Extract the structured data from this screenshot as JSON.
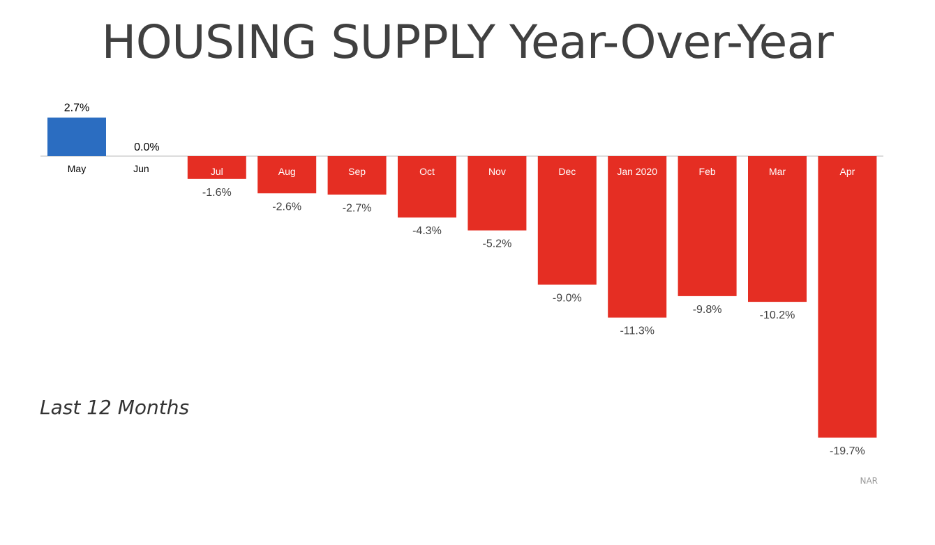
{
  "page": {
    "title": "HOUSING SUPPLY Year-Over-Year",
    "subtitle": "Last 12 Months",
    "source": "NAR"
  },
  "colors": {
    "positive": "#2b6dc1",
    "negative": "#e52e23",
    "axis": "#d0d0d0",
    "value_label": "#404040",
    "category_on_bar": "#ffffff",
    "category_off_bar": "#000000"
  },
  "chart_data": {
    "type": "bar",
    "title": "HOUSING SUPPLY Year-Over-Year",
    "subtitle": "Last 12 Months",
    "categories": [
      "May",
      "Jun",
      "Jul",
      "Aug",
      "Sep",
      "Oct",
      "Nov",
      "Dec",
      "Jan 2020",
      "Feb",
      "Mar",
      "Apr"
    ],
    "values": [
      2.7,
      0.0,
      -1.6,
      -2.6,
      -2.7,
      -4.3,
      -5.2,
      -9.0,
      -11.3,
      -9.8,
      -10.2,
      -19.7
    ],
    "value_labels": [
      "2.7%",
      "0.0%",
      "-1.6%",
      "-2.6%",
      "-2.7%",
      "-4.3%",
      "-5.2%",
      "-9.0%",
      "-11.3%",
      "-9.8%",
      "-10.2%",
      "-19.7%"
    ],
    "unit": "%",
    "xlabel": "",
    "ylabel": "",
    "ylim": [
      -19.7,
      2.7
    ],
    "grid": false,
    "legend": "none",
    "source": "NAR"
  }
}
